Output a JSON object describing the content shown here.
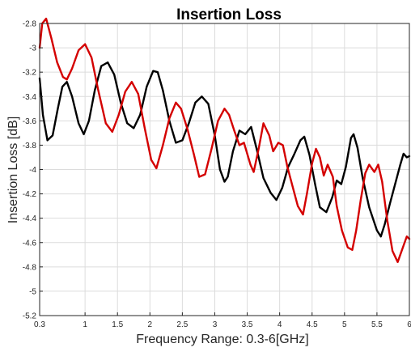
{
  "chart_data": {
    "type": "line",
    "title": "Insertion Loss",
    "xlabel": "Frequency Range: 0.3-6[GHz]",
    "ylabel": "Insertion Loss [dB]",
    "xlim": [
      0.3,
      6
    ],
    "ylim": [
      -5.2,
      -2.8
    ],
    "grid": true,
    "xticks": [
      0.3,
      1,
      1.5,
      2,
      2.5,
      3,
      3.5,
      4,
      4.5,
      5,
      5.5,
      6
    ],
    "xtick_labels": [
      "0.3",
      "1",
      "1.5",
      "2",
      "2.5",
      "3",
      "3.5",
      "4",
      "4.5",
      "5",
      "5.5",
      "6"
    ],
    "yticks": [
      -2.8,
      -3,
      -3.2,
      -3.4,
      -3.6,
      -3.8,
      -4,
      -4.2,
      -4.4,
      -4.6,
      -4.8,
      -5,
      -5.2
    ],
    "ytick_labels": [
      "-2.8",
      "-3",
      "-3.2",
      "-3.4",
      "-3.6",
      "-3.8",
      "-4",
      "-4.2",
      "-4.4",
      "-4.6",
      "-4.8",
      "-5",
      "-5.2"
    ],
    "series": [
      {
        "color": "#000000",
        "points": [
          [
            0.3,
            -3.25
          ],
          [
            0.35,
            -3.55
          ],
          [
            0.42,
            -3.76
          ],
          [
            0.5,
            -3.72
          ],
          [
            0.58,
            -3.5
          ],
          [
            0.65,
            -3.32
          ],
          [
            0.72,
            -3.28
          ],
          [
            0.8,
            -3.4
          ],
          [
            0.9,
            -3.62
          ],
          [
            0.98,
            -3.71
          ],
          [
            1.06,
            -3.6
          ],
          [
            1.15,
            -3.35
          ],
          [
            1.25,
            -3.15
          ],
          [
            1.35,
            -3.12
          ],
          [
            1.45,
            -3.22
          ],
          [
            1.55,
            -3.45
          ],
          [
            1.65,
            -3.62
          ],
          [
            1.75,
            -3.66
          ],
          [
            1.85,
            -3.55
          ],
          [
            1.95,
            -3.32
          ],
          [
            2.05,
            -3.19
          ],
          [
            2.12,
            -3.2
          ],
          [
            2.2,
            -3.35
          ],
          [
            2.3,
            -3.6
          ],
          [
            2.4,
            -3.78
          ],
          [
            2.5,
            -3.76
          ],
          [
            2.6,
            -3.62
          ],
          [
            2.7,
            -3.45
          ],
          [
            2.8,
            -3.4
          ],
          [
            2.9,
            -3.46
          ],
          [
            3.0,
            -3.72
          ],
          [
            3.08,
            -4.0
          ],
          [
            3.15,
            -4.1
          ],
          [
            3.2,
            -4.06
          ],
          [
            3.28,
            -3.85
          ],
          [
            3.38,
            -3.68
          ],
          [
            3.47,
            -3.71
          ],
          [
            3.56,
            -3.65
          ],
          [
            3.65,
            -3.84
          ],
          [
            3.75,
            -4.07
          ],
          [
            3.86,
            -4.19
          ],
          [
            3.95,
            -4.25
          ],
          [
            4.04,
            -4.15
          ],
          [
            4.13,
            -3.98
          ],
          [
            4.22,
            -3.88
          ],
          [
            4.32,
            -3.76
          ],
          [
            4.38,
            -3.73
          ],
          [
            4.46,
            -3.88
          ],
          [
            4.55,
            -4.13
          ],
          [
            4.62,
            -4.31
          ],
          [
            4.72,
            -4.35
          ],
          [
            4.81,
            -4.23
          ],
          [
            4.88,
            -4.09
          ],
          [
            4.95,
            -4.12
          ],
          [
            5.02,
            -3.98
          ],
          [
            5.1,
            -3.74
          ],
          [
            5.14,
            -3.71
          ],
          [
            5.2,
            -3.82
          ],
          [
            5.28,
            -4.07
          ],
          [
            5.38,
            -4.31
          ],
          [
            5.5,
            -4.5
          ],
          [
            5.56,
            -4.55
          ],
          [
            5.62,
            -4.45
          ],
          [
            5.7,
            -4.28
          ],
          [
            5.78,
            -4.12
          ],
          [
            5.86,
            -3.96
          ],
          [
            5.91,
            -3.87
          ],
          [
            5.96,
            -3.9
          ],
          [
            6.0,
            -3.89
          ]
        ]
      },
      {
        "color": "#d40000",
        "points": [
          [
            0.3,
            -3.0
          ],
          [
            0.34,
            -2.8
          ],
          [
            0.4,
            -2.76
          ],
          [
            0.48,
            -2.92
          ],
          [
            0.57,
            -3.12
          ],
          [
            0.66,
            -3.24
          ],
          [
            0.72,
            -3.26
          ],
          [
            0.8,
            -3.17
          ],
          [
            0.9,
            -3.02
          ],
          [
            1.0,
            -2.97
          ],
          [
            1.1,
            -3.08
          ],
          [
            1.2,
            -3.34
          ],
          [
            1.32,
            -3.62
          ],
          [
            1.42,
            -3.69
          ],
          [
            1.52,
            -3.55
          ],
          [
            1.62,
            -3.36
          ],
          [
            1.72,
            -3.28
          ],
          [
            1.82,
            -3.38
          ],
          [
            1.92,
            -3.66
          ],
          [
            2.02,
            -3.92
          ],
          [
            2.1,
            -3.99
          ],
          [
            2.2,
            -3.8
          ],
          [
            2.3,
            -3.58
          ],
          [
            2.4,
            -3.45
          ],
          [
            2.48,
            -3.5
          ],
          [
            2.58,
            -3.67
          ],
          [
            2.68,
            -3.88
          ],
          [
            2.76,
            -4.06
          ],
          [
            2.85,
            -4.04
          ],
          [
            2.95,
            -3.83
          ],
          [
            3.05,
            -3.6
          ],
          [
            3.15,
            -3.5
          ],
          [
            3.22,
            -3.55
          ],
          [
            3.3,
            -3.68
          ],
          [
            3.38,
            -3.8
          ],
          [
            3.45,
            -3.78
          ],
          [
            3.55,
            -3.96
          ],
          [
            3.6,
            -4.02
          ],
          [
            3.68,
            -3.82
          ],
          [
            3.75,
            -3.62
          ],
          [
            3.84,
            -3.72
          ],
          [
            3.9,
            -3.85
          ],
          [
            3.98,
            -3.78
          ],
          [
            4.05,
            -3.8
          ],
          [
            4.12,
            -3.98
          ],
          [
            4.2,
            -4.14
          ],
          [
            4.28,
            -4.3
          ],
          [
            4.36,
            -4.37
          ],
          [
            4.42,
            -4.2
          ],
          [
            4.5,
            -3.95
          ],
          [
            4.56,
            -3.83
          ],
          [
            4.62,
            -3.9
          ],
          [
            4.68,
            -4.05
          ],
          [
            4.74,
            -3.96
          ],
          [
            4.82,
            -4.06
          ],
          [
            4.88,
            -4.3
          ],
          [
            4.96,
            -4.5
          ],
          [
            5.05,
            -4.64
          ],
          [
            5.12,
            -4.66
          ],
          [
            5.18,
            -4.5
          ],
          [
            5.25,
            -4.25
          ],
          [
            5.32,
            -4.03
          ],
          [
            5.38,
            -3.96
          ],
          [
            5.46,
            -4.02
          ],
          [
            5.52,
            -3.96
          ],
          [
            5.58,
            -4.1
          ],
          [
            5.66,
            -4.42
          ],
          [
            5.74,
            -4.67
          ],
          [
            5.82,
            -4.76
          ],
          [
            5.9,
            -4.64
          ],
          [
            5.96,
            -4.55
          ],
          [
            6.0,
            -4.57
          ]
        ]
      }
    ]
  }
}
